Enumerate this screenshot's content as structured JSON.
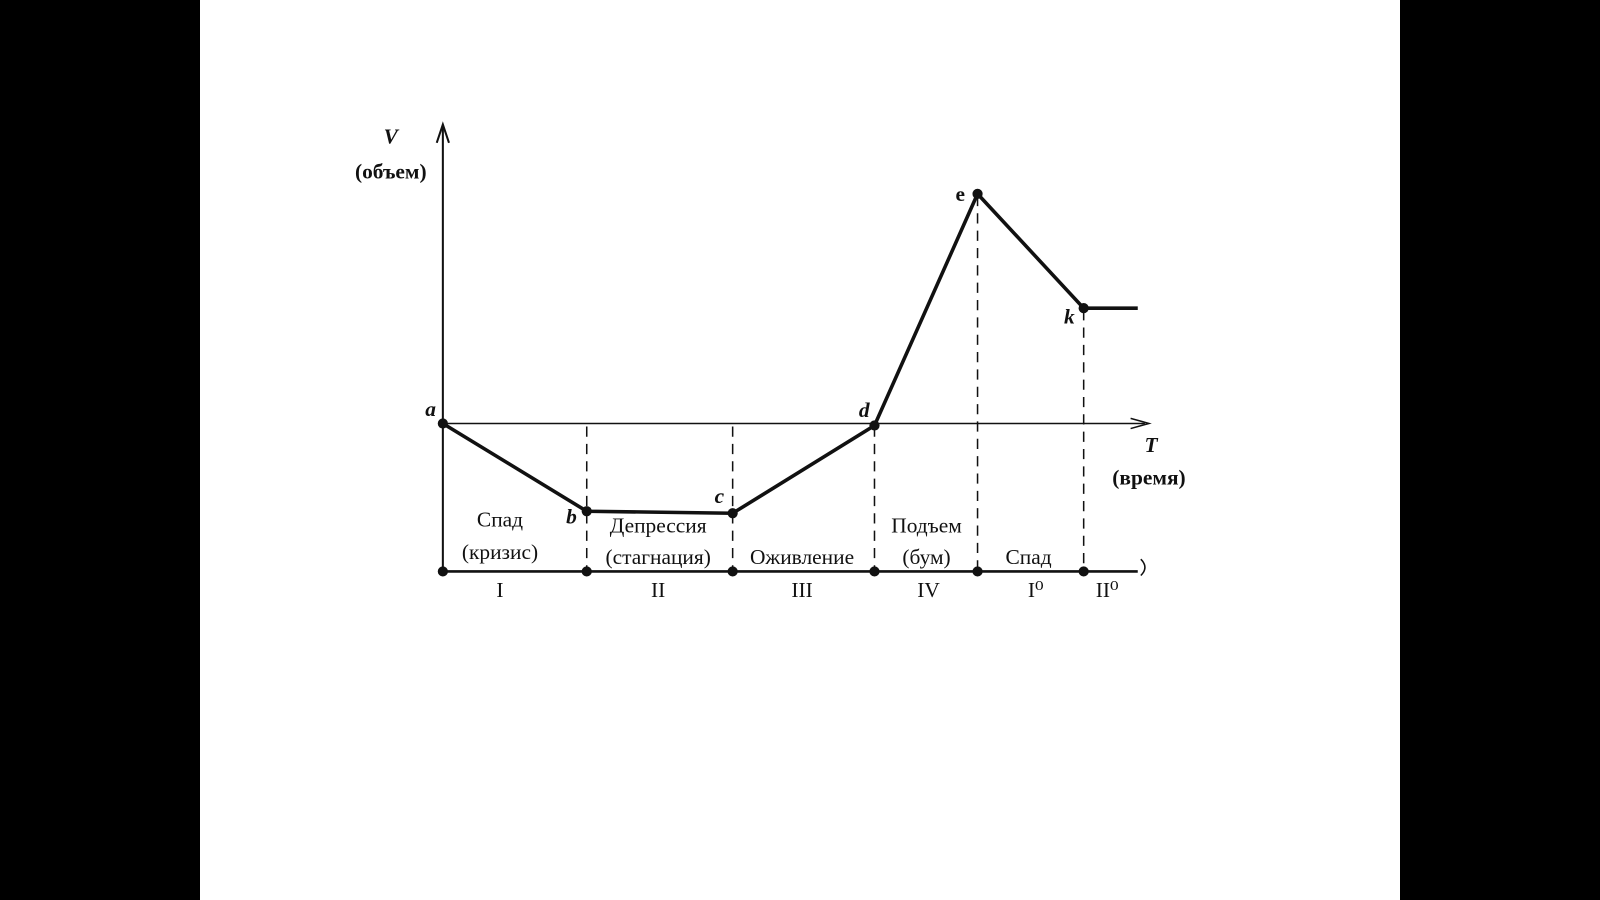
{
  "axes": {
    "y_label": "V",
    "y_caption": "(объем)",
    "x_label": "T",
    "x_caption": "(время)"
  },
  "points": [
    {
      "label": "a"
    },
    {
      "label": "b"
    },
    {
      "label": "c"
    },
    {
      "label": "d"
    },
    {
      "label": "e"
    },
    {
      "label": "k"
    }
  ],
  "phases": [
    {
      "lines": [
        "Спад",
        "(кризис)"
      ],
      "numeral": "I"
    },
    {
      "lines": [
        "Депрессия",
        "(стагнация)"
      ],
      "numeral": "II"
    },
    {
      "lines": [
        "Оживление"
      ],
      "numeral": "III"
    },
    {
      "lines": [
        "Подъем",
        "(бум)"
      ],
      "numeral": "IV"
    },
    {
      "lines": [
        "Спад"
      ],
      "numeral": "I⁰"
    },
    {
      "lines": [],
      "numeral": "II⁰"
    }
  ]
}
